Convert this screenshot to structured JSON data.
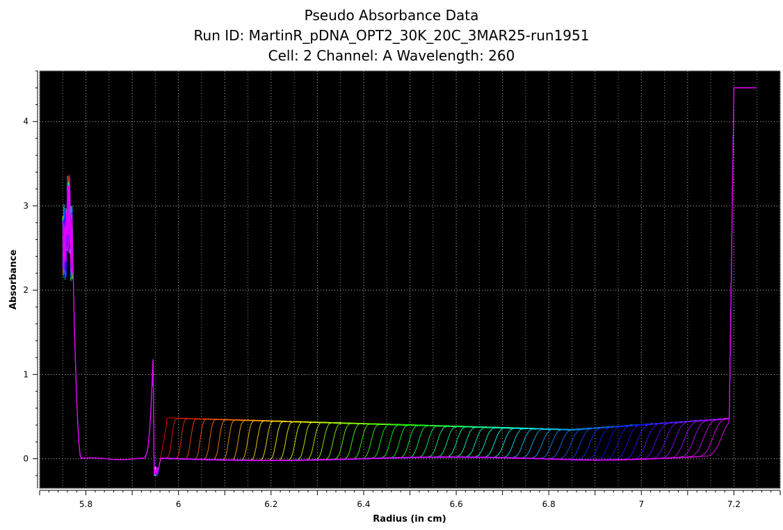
{
  "chart_data": {
    "type": "line",
    "title": "Pseudo Absorbance Data",
    "subtitle_lines": [
      "Run ID: MartinR_pDNA_OPT2_30K_20C_3MAR25-run1951",
      "Cell: 2  Channel: A  Wavelength: 260"
    ],
    "xlabel": "Radius (in cm)",
    "ylabel": "Absorbance",
    "xlim": [
      5.7,
      7.3
    ],
    "ylim": [
      -0.35,
      4.6
    ],
    "x_ticks": [
      5.8,
      6,
      6.2,
      6.4,
      6.6,
      6.8,
      7,
      7.2
    ],
    "x_tick_labels": [
      "5.8",
      "6",
      "6.2",
      "6.4",
      "6.6",
      "6.8",
      "7",
      "7.2"
    ],
    "y_ticks": [
      0,
      1,
      2,
      3,
      4
    ],
    "y_tick_labels": [
      "0",
      "1",
      "2",
      "3",
      "4"
    ],
    "grid": true,
    "background": "#000000",
    "series_count": 60,
    "series_color_scheme": "rainbow",
    "meniscus_radius": 5.95,
    "bottom_radius": 7.19,
    "plateau_absorbance": 0.48,
    "baseline_absorbance": 0.0,
    "top_reading": 4.4,
    "reference_profile": {
      "x": [
        5.75,
        5.76,
        5.77,
        5.78,
        5.79,
        5.8,
        5.85,
        5.9,
        5.93,
        5.945,
        5.955,
        5.96,
        6.0,
        6.2,
        6.4,
        6.6,
        6.8,
        7.0,
        7.1,
        7.18,
        7.195,
        7.2,
        7.25
      ],
      "y": [
        2.6,
        3.1,
        2.3,
        0.4,
        0.05,
        0.0,
        0.0,
        0.02,
        0.3,
        1.45,
        -0.15,
        0.47,
        0.48,
        0.43,
        0.4,
        0.38,
        0.39,
        0.45,
        0.5,
        0.58,
        4.4,
        4.4,
        4.4
      ]
    }
  }
}
